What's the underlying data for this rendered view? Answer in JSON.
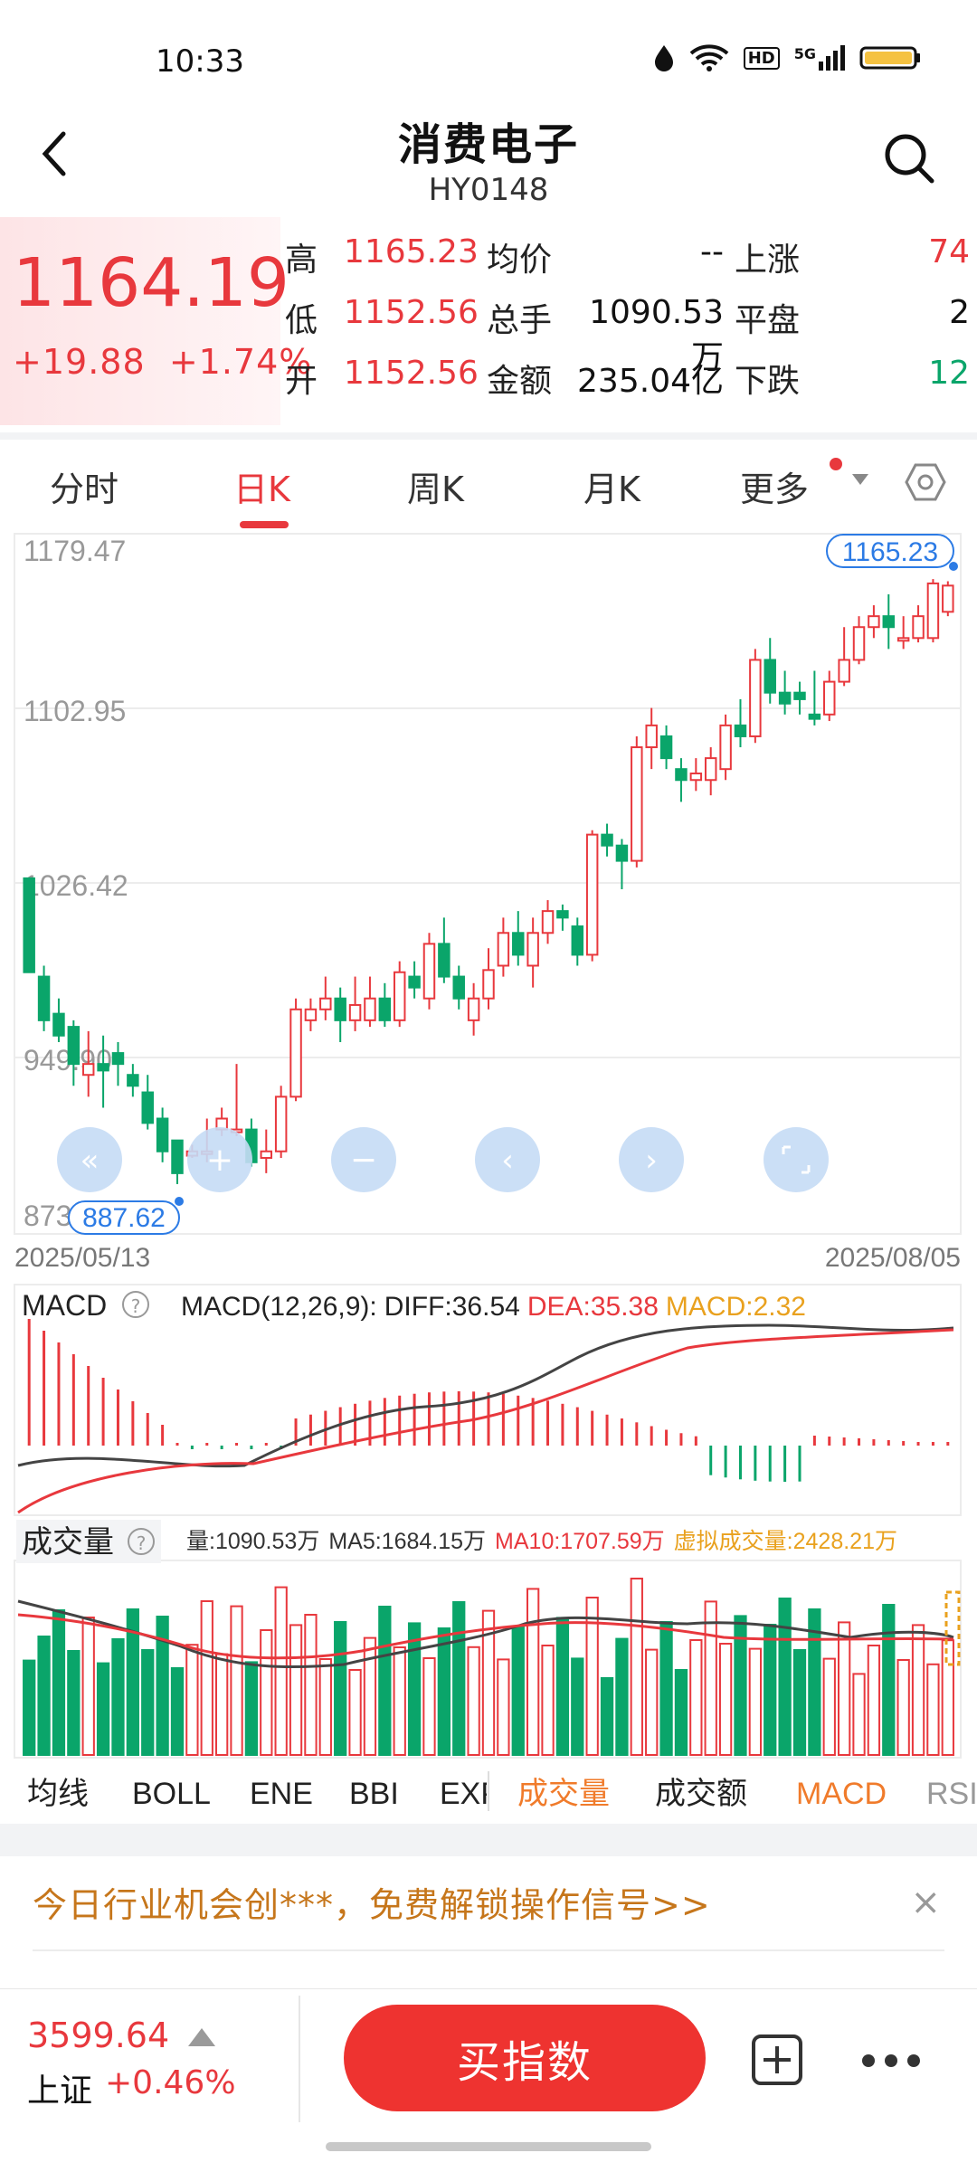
{
  "status_bar": {
    "time": "10:33",
    "network": "5G",
    "hd": "HD"
  },
  "header": {
    "title": "消费电子",
    "code": "HY0148"
  },
  "quote": {
    "price": "1164.19",
    "change": "+19.88",
    "change_pct": "+1.74%",
    "high_label": "高",
    "high": "1165.23",
    "low_label": "低",
    "low": "1152.56",
    "open_label": "开",
    "open": "1152.56",
    "avg_label": "均价",
    "avg": "--",
    "volume_label": "总手",
    "volume": "1090.53万",
    "amount_label": "金额",
    "amount": "235.04亿",
    "up_label": "上涨",
    "up": "74",
    "flat_label": "平盘",
    "flat": "2",
    "down_label": "下跌",
    "down": "12"
  },
  "tabs": [
    "分时",
    "日K",
    "周K",
    "月K",
    "更多"
  ],
  "chart_data": {
    "type": "candlestick",
    "y_ticks": [
      "1179.47",
      "1102.95",
      "1026.42",
      "949.90",
      "873"
    ],
    "max_label": "1165.23",
    "min_label": "887.62",
    "start_date": "2025/05/13",
    "end_date": "2025/08/05",
    "candles": [
      [
        1030,
        987,
        1030,
        987
      ],
      [
        985,
        965,
        990,
        960
      ],
      [
        968,
        958,
        975,
        955
      ],
      [
        962,
        945,
        965,
        935
      ],
      [
        940,
        945,
        960,
        930
      ],
      [
        945,
        942,
        958,
        925
      ],
      [
        950,
        945,
        955,
        935
      ],
      [
        940,
        935,
        945,
        930
      ],
      [
        932,
        918,
        940,
        915
      ],
      [
        920,
        905,
        925,
        900
      ],
      [
        910,
        895,
        910,
        890
      ],
      [
        903,
        905,
        908,
        902
      ],
      [
        904,
        905,
        920,
        900
      ],
      [
        915,
        920,
        925,
        912
      ],
      [
        915,
        915,
        945,
        912
      ],
      [
        915,
        900,
        920,
        898
      ],
      [
        902,
        905,
        915,
        895
      ],
      [
        905,
        930,
        935,
        902
      ],
      [
        930,
        970,
        975,
        928
      ],
      [
        965,
        970,
        975,
        960
      ],
      [
        970,
        975,
        985,
        965
      ],
      [
        975,
        965,
        980,
        955
      ],
      [
        965,
        972,
        985,
        960
      ],
      [
        965,
        975,
        985,
        962
      ],
      [
        975,
        965,
        982,
        962
      ],
      [
        965,
        987,
        992,
        962
      ],
      [
        985,
        980,
        992,
        975
      ],
      [
        975,
        1000,
        1005,
        970
      ],
      [
        1000,
        985,
        1012,
        982
      ],
      [
        985,
        975,
        990,
        970
      ],
      [
        965,
        975,
        982,
        958
      ],
      [
        975,
        988,
        998,
        970
      ],
      [
        990,
        1005,
        1012,
        985
      ],
      [
        1005,
        995,
        1015,
        990
      ],
      [
        990,
        1005,
        1012,
        980
      ],
      [
        1005,
        1015,
        1020,
        1000
      ],
      [
        1015,
        1012,
        1018,
        1006
      ],
      [
        1008,
        995,
        1012,
        990
      ],
      [
        995,
        1050,
        1052,
        992
      ],
      [
        1050,
        1045,
        1055,
        1040
      ],
      [
        1045,
        1038,
        1048,
        1025
      ],
      [
        1038,
        1090,
        1095,
        1035
      ],
      [
        1090,
        1100,
        1108,
        1080
      ],
      [
        1095,
        1085,
        1100,
        1080
      ],
      [
        1080,
        1075,
        1085,
        1065
      ],
      [
        1075,
        1078,
        1085,
        1070
      ],
      [
        1075,
        1085,
        1090,
        1068
      ],
      [
        1080,
        1100,
        1105,
        1075
      ],
      [
        1100,
        1095,
        1112,
        1090
      ],
      [
        1095,
        1130,
        1135,
        1092
      ],
      [
        1130,
        1115,
        1140,
        1110
      ],
      [
        1115,
        1110,
        1125,
        1105
      ],
      [
        1115,
        1112,
        1120,
        1105
      ],
      [
        1105,
        1103,
        1125,
        1100
      ],
      [
        1105,
        1120,
        1125,
        1102
      ],
      [
        1120,
        1130,
        1145,
        1118
      ],
      [
        1130,
        1145,
        1150,
        1128
      ],
      [
        1145,
        1150,
        1155,
        1140
      ],
      [
        1150,
        1145,
        1160,
        1135
      ],
      [
        1140,
        1140,
        1150,
        1135
      ],
      [
        1140,
        1150,
        1155,
        1138
      ],
      [
        1140,
        1165,
        1167,
        1138
      ],
      [
        1152,
        1164,
        1166,
        1150
      ]
    ],
    "macd": {
      "label": "MACD",
      "params": "MACD(12,26,9):",
      "diff": "DIFF:36.54",
      "dea": "DEA:35.38",
      "macd": "MACD:2.32"
    },
    "vol": {
      "label": "成交量",
      "vol": "量:1090.53万",
      "ma5": "MA5:1684.15万",
      "ma10": "MA10:1707.59万",
      "virtual": "虚拟成交量:2428.21万"
    }
  },
  "indicator_tabs": [
    "均线",
    "BOLL",
    "ENE",
    "BBI",
    "EXPMA",
    "成交量",
    "成交额",
    "MACD",
    "RSI"
  ],
  "banner": {
    "text": "今日行业机会创***，免费解锁操作信号>>",
    "close": "×"
  },
  "bottom": {
    "index_price": "3599.64",
    "index_name": "上证",
    "index_change": "+0.46%",
    "buy_label": "买指数"
  },
  "colors": {
    "up": "#e8383d",
    "down": "#0aa56a",
    "accent_blue": "#2c7be5",
    "banner": "#c6761b"
  }
}
